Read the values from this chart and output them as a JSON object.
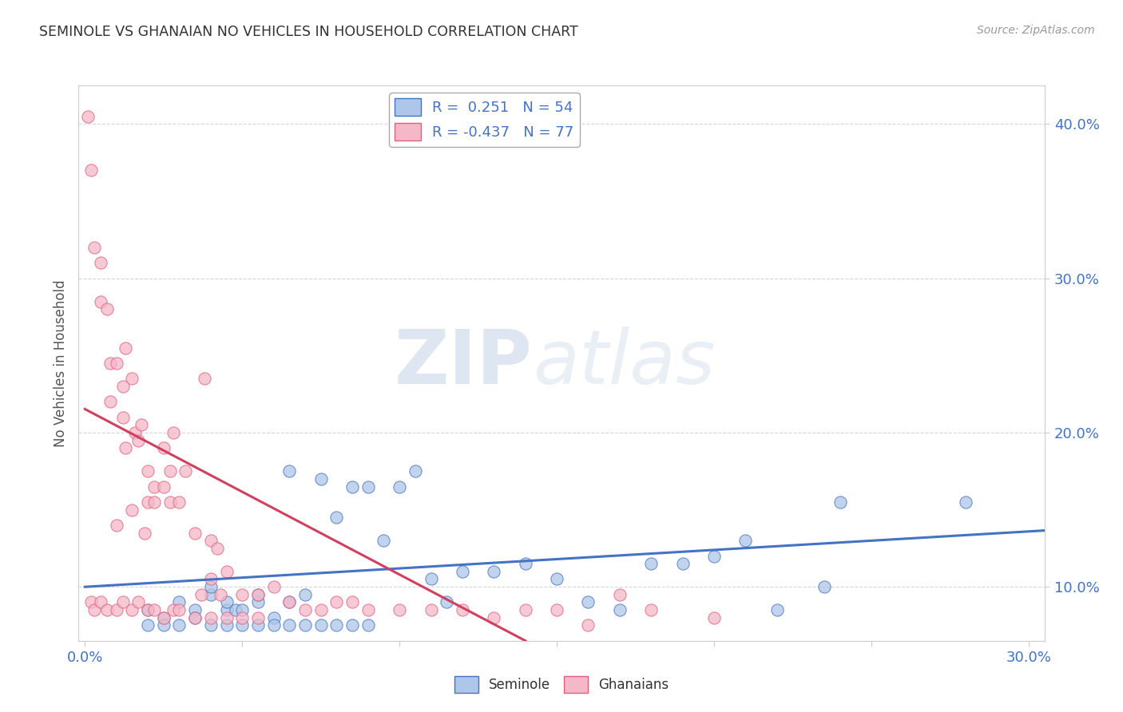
{
  "title": "SEMINOLE VS GHANAIAN NO VEHICLES IN HOUSEHOLD CORRELATION CHART",
  "source": "Source: ZipAtlas.com",
  "ylabel": "No Vehicles in Household",
  "xlim": [
    -0.002,
    0.305
  ],
  "ylim": [
    0.065,
    0.425
  ],
  "yticks": [
    0.1,
    0.2,
    0.3,
    0.4
  ],
  "ytick_labels": [
    "10.0%",
    "20.0%",
    "30.0%",
    "40.0%"
  ],
  "xtick_positions": [
    0.0,
    0.05,
    0.1,
    0.15,
    0.2,
    0.25,
    0.3
  ],
  "xtick_labels": [
    "0.0%",
    "",
    "",
    "",
    "",
    "",
    "30.0%"
  ],
  "seminole_color": "#aec6e8",
  "ghanaian_color": "#f4b8c8",
  "seminole_edge_color": "#4472c4",
  "ghanaian_edge_color": "#e06080",
  "seminole_line_color": "#4472c4",
  "ghanaian_line_color": "#d04060",
  "bg_color": "#ffffff",
  "watermark_zip": "ZIP",
  "watermark_atlas": "atlas",
  "tick_color": "#4472c4",
  "grid_color": "#cccccc",
  "seminole_x": [
    0.02,
    0.025,
    0.03,
    0.035,
    0.04,
    0.04,
    0.045,
    0.045,
    0.048,
    0.05,
    0.055,
    0.055,
    0.06,
    0.065,
    0.065,
    0.07,
    0.075,
    0.08,
    0.085,
    0.09,
    0.095,
    0.1,
    0.105,
    0.11,
    0.115,
    0.12,
    0.13,
    0.14,
    0.15,
    0.16,
    0.17,
    0.18,
    0.19,
    0.2,
    0.21,
    0.22,
    0.235,
    0.24,
    0.28,
    0.02,
    0.025,
    0.03,
    0.035,
    0.04,
    0.045,
    0.05,
    0.055,
    0.06,
    0.065,
    0.07,
    0.075,
    0.08,
    0.085,
    0.09
  ],
  "seminole_y": [
    0.085,
    0.08,
    0.09,
    0.085,
    0.095,
    0.1,
    0.085,
    0.09,
    0.085,
    0.085,
    0.09,
    0.095,
    0.08,
    0.175,
    0.09,
    0.095,
    0.17,
    0.145,
    0.165,
    0.165,
    0.13,
    0.165,
    0.175,
    0.105,
    0.09,
    0.11,
    0.11,
    0.115,
    0.105,
    0.09,
    0.085,
    0.115,
    0.115,
    0.12,
    0.13,
    0.085,
    0.1,
    0.155,
    0.155,
    0.075,
    0.075,
    0.075,
    0.08,
    0.075,
    0.075,
    0.075,
    0.075,
    0.075,
    0.075,
    0.075,
    0.075,
    0.075,
    0.075,
    0.075
  ],
  "ghanaian_x": [
    0.001,
    0.002,
    0.003,
    0.005,
    0.005,
    0.007,
    0.008,
    0.008,
    0.01,
    0.01,
    0.012,
    0.012,
    0.013,
    0.013,
    0.015,
    0.015,
    0.016,
    0.017,
    0.018,
    0.019,
    0.02,
    0.02,
    0.022,
    0.022,
    0.025,
    0.025,
    0.027,
    0.027,
    0.028,
    0.03,
    0.032,
    0.035,
    0.037,
    0.038,
    0.04,
    0.04,
    0.042,
    0.043,
    0.045,
    0.05,
    0.055,
    0.06,
    0.065,
    0.07,
    0.075,
    0.08,
    0.085,
    0.09,
    0.1,
    0.11,
    0.12,
    0.13,
    0.14,
    0.15,
    0.16,
    0.17,
    0.18,
    0.2,
    0.002,
    0.003,
    0.005,
    0.007,
    0.01,
    0.012,
    0.015,
    0.017,
    0.02,
    0.022,
    0.025,
    0.028,
    0.03,
    0.035,
    0.04,
    0.045,
    0.05,
    0.055
  ],
  "ghanaian_y": [
    0.405,
    0.37,
    0.32,
    0.285,
    0.31,
    0.28,
    0.22,
    0.245,
    0.245,
    0.14,
    0.21,
    0.23,
    0.19,
    0.255,
    0.15,
    0.235,
    0.2,
    0.195,
    0.205,
    0.135,
    0.175,
    0.155,
    0.155,
    0.165,
    0.165,
    0.19,
    0.155,
    0.175,
    0.2,
    0.155,
    0.175,
    0.135,
    0.095,
    0.235,
    0.105,
    0.13,
    0.125,
    0.095,
    0.11,
    0.095,
    0.095,
    0.1,
    0.09,
    0.085,
    0.085,
    0.09,
    0.09,
    0.085,
    0.085,
    0.085,
    0.085,
    0.08,
    0.085,
    0.085,
    0.075,
    0.095,
    0.085,
    0.08,
    0.09,
    0.085,
    0.09,
    0.085,
    0.085,
    0.09,
    0.085,
    0.09,
    0.085,
    0.085,
    0.08,
    0.085,
    0.085,
    0.08,
    0.08,
    0.08,
    0.08,
    0.08
  ]
}
